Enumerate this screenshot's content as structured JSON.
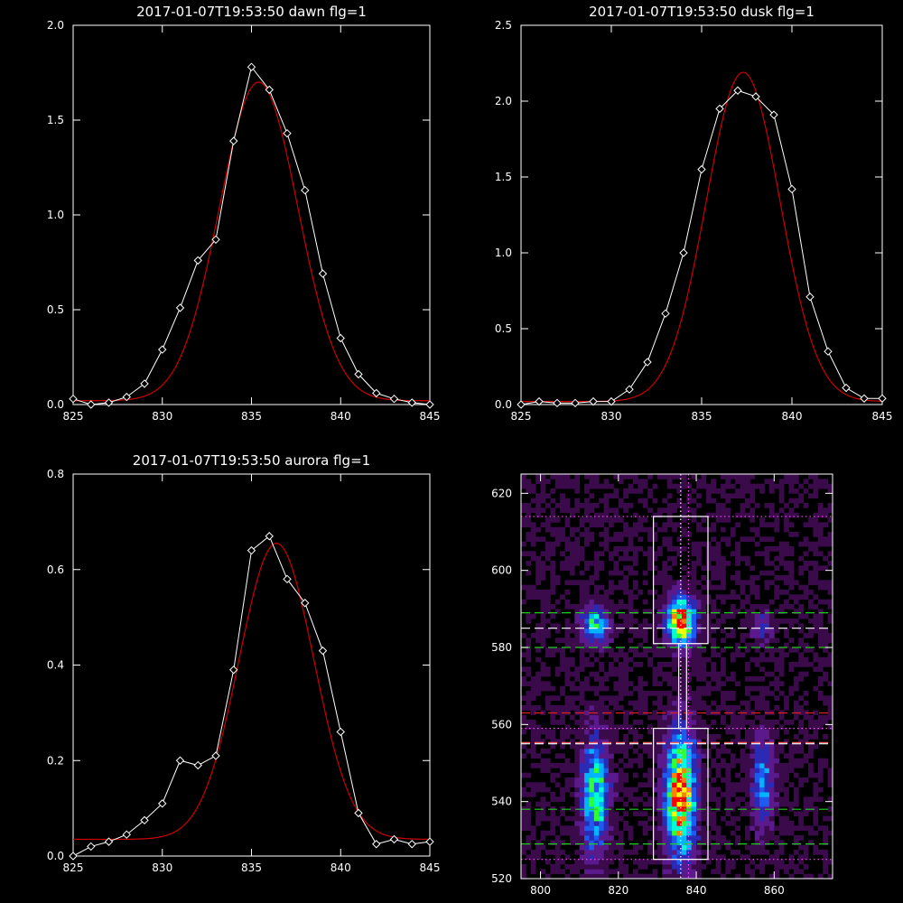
{
  "chart_data": [
    {
      "type": "line",
      "title": "2017-01-07T19:53:50 dawn flg=1",
      "xlim": [
        825,
        845
      ],
      "ylim": [
        0,
        2.0
      ],
      "xticks": [
        825,
        830,
        835,
        840,
        845
      ],
      "yticks": [
        0.0,
        0.5,
        1.0,
        1.5,
        2.0
      ],
      "xtick_labels": [
        "825",
        "830",
        "835",
        "840",
        "845"
      ],
      "ytick_labels": [
        "0.0",
        "0.5",
        "1.0",
        "1.5",
        "2.0"
      ],
      "series": [
        {
          "color": "#ffffff",
          "marker": "diamond",
          "x": [
            825,
            826,
            827,
            828,
            829,
            830,
            831,
            832,
            833,
            834,
            835,
            836,
            837,
            838,
            839,
            840,
            841,
            842,
            843,
            844,
            845
          ],
          "y": [
            0.03,
            0.0,
            0.01,
            0.04,
            0.11,
            0.29,
            0.51,
            0.76,
            0.87,
            1.39,
            1.78,
            1.66,
            1.43,
            1.13,
            0.69,
            0.35,
            0.16,
            0.06,
            0.03,
            0.01,
            0.0
          ]
        },
        {
          "color": "#cc0000",
          "fit": "gaussian",
          "center": 835.4,
          "sigma": 2.2,
          "amplitude": 1.68,
          "offset": 0.02
        }
      ]
    },
    {
      "type": "line",
      "title": "2017-01-07T19:53:50 dusk flg=1",
      "xlim": [
        825,
        845
      ],
      "ylim": [
        0,
        2.5
      ],
      "xticks": [
        825,
        830,
        835,
        840,
        845
      ],
      "yticks": [
        0.0,
        0.5,
        1.0,
        1.5,
        2.0,
        2.5
      ],
      "xtick_labels": [
        "825",
        "830",
        "835",
        "840",
        "845"
      ],
      "ytick_labels": [
        "0.0",
        "0.5",
        "1.0",
        "1.5",
        "2.0",
        "2.5"
      ],
      "series": [
        {
          "color": "#ffffff",
          "marker": "diamond",
          "x": [
            825,
            826,
            827,
            828,
            829,
            830,
            831,
            832,
            833,
            834,
            835,
            836,
            837,
            838,
            839,
            840,
            841,
            842,
            843,
            844,
            845
          ],
          "y": [
            0.0,
            0.02,
            0.01,
            0.01,
            0.02,
            0.02,
            0.1,
            0.28,
            0.6,
            1.0,
            1.55,
            1.95,
            2.07,
            2.03,
            1.91,
            1.42,
            0.71,
            0.35,
            0.11,
            0.04,
            0.04
          ]
        },
        {
          "color": "#cc0000",
          "fit": "gaussian",
          "center": 837.3,
          "sigma": 2.05,
          "amplitude": 2.17,
          "offset": 0.02
        }
      ]
    },
    {
      "type": "line",
      "title": "2017-01-07T19:53:50 aurora flg=1",
      "xlim": [
        825,
        845
      ],
      "ylim": [
        0,
        0.8
      ],
      "xticks": [
        825,
        830,
        835,
        840,
        845
      ],
      "yticks": [
        0.0,
        0.2,
        0.4,
        0.6,
        0.8
      ],
      "xtick_labels": [
        "825",
        "830",
        "835",
        "840",
        "845"
      ],
      "ytick_labels": [
        "0.0",
        "0.2",
        "0.4",
        "0.6",
        "0.8"
      ],
      "series": [
        {
          "color": "#ffffff",
          "marker": "diamond",
          "x": [
            825,
            826,
            827,
            828,
            829,
            830,
            831,
            832,
            833,
            834,
            835,
            836,
            837,
            838,
            839,
            840,
            841,
            842,
            843,
            844,
            845
          ],
          "y": [
            0.0,
            0.02,
            0.03,
            0.045,
            0.075,
            0.11,
            0.2,
            0.19,
            0.21,
            0.39,
            0.64,
            0.67,
            0.58,
            0.53,
            0.43,
            0.26,
            0.09,
            0.025,
            0.035,
            0.025,
            0.03
          ]
        },
        {
          "color": "#cc0000",
          "fit": "gaussian",
          "center": 836.4,
          "sigma": 2.1,
          "amplitude": 0.62,
          "offset": 0.035
        }
      ]
    },
    {
      "type": "heatmap",
      "title": "",
      "xlim": [
        795,
        875
      ],
      "ylim": [
        520,
        625
      ],
      "xticks": [
        800,
        820,
        840,
        860
      ],
      "yticks": [
        520,
        540,
        560,
        580,
        600,
        620
      ],
      "xtick_labels": [
        "800",
        "820",
        "840",
        "860"
      ],
      "ytick_labels": [
        "520",
        "540",
        "560",
        "580",
        "600",
        "620"
      ],
      "colormap": [
        "#000000",
        "#3a0a4a",
        "#5b1a8c",
        "#2a2ab4",
        "#1f5af0",
        "#00b4ff",
        "#00ffd0",
        "#30ff30",
        "#f0ff00",
        "#ff8000",
        "#ff0000"
      ],
      "blobs": [
        {
          "x": 814,
          "y": 586,
          "sx": 2.2,
          "sy": 3.2,
          "amp": 0.55
        },
        {
          "x": 836,
          "y": 587,
          "sx": 2.4,
          "sy": 4.0,
          "amp": 1.0
        },
        {
          "x": 857,
          "y": 585,
          "sx": 1.8,
          "sy": 2.8,
          "amp": 0.22
        },
        {
          "x": 814,
          "y": 542,
          "sx": 2.4,
          "sy": 10.0,
          "amp": 0.6
        },
        {
          "x": 836,
          "y": 542,
          "sx": 2.6,
          "sy": 11.0,
          "amp": 0.95
        },
        {
          "x": 857,
          "y": 545,
          "sx": 2.0,
          "sy": 8.0,
          "amp": 0.38
        }
      ],
      "rectangles": [
        {
          "x0": 829,
          "x1": 843,
          "y0": 581,
          "y1": 614,
          "color": "#ffffff",
          "style": "solid"
        },
        {
          "x0": 829,
          "x1": 843,
          "y0": 525,
          "y1": 559,
          "color": "#ffffff",
          "style": "solid"
        },
        {
          "x0": 835.5,
          "x1": 837.5,
          "y0": 559,
          "y1": 581,
          "color": "#ffffff",
          "style": "solid"
        }
      ],
      "hlines": [
        {
          "y": 614,
          "color": "#ff44ff",
          "style": "dotted"
        },
        {
          "y": 589,
          "color": "#22cc22",
          "style": "dashed"
        },
        {
          "y": 585,
          "color": "#ffffff",
          "style": "dashed"
        },
        {
          "y": 580,
          "color": "#22cc22",
          "style": "dashed"
        },
        {
          "y": 563,
          "color": "#dd2222",
          "style": "dashed"
        },
        {
          "y": 559,
          "color": "#ff44ff",
          "style": "dotted"
        },
        {
          "y": 555,
          "color": "#ffffff",
          "style": "dashed"
        },
        {
          "y": 555.3,
          "color": "#ff6666",
          "style": "dashed"
        },
        {
          "y": 538,
          "color": "#22cc22",
          "style": "dashed"
        },
        {
          "y": 529,
          "color": "#22cc22",
          "style": "dashed"
        },
        {
          "y": 525,
          "color": "#ff44ff",
          "style": "dotted"
        }
      ],
      "vlines": [
        {
          "x": 836,
          "color": "#ffffff",
          "style": "dotted"
        },
        {
          "x": 838,
          "color": "#ff44ff",
          "style": "dotted"
        }
      ]
    }
  ]
}
